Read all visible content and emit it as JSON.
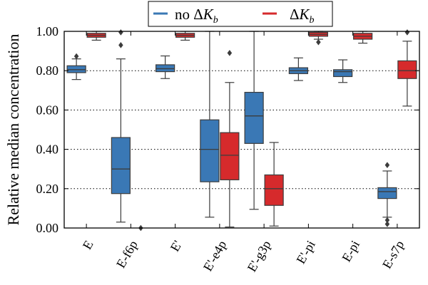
{
  "chart_data": {
    "type": "box",
    "ylabel": "Relative median concentration",
    "ylim": [
      0,
      1.0
    ],
    "yticks": [
      "0.00",
      "0.20",
      "0.40",
      "0.60",
      "0.80",
      "1.00"
    ],
    "grid": "horizontal dotted",
    "legend_position": "top-center",
    "categories": [
      "E",
      "E-f6p",
      "E'",
      "E'-e4p",
      "E'-g3p",
      "E'-pi",
      "E-pi",
      "E-s7p"
    ],
    "series": [
      {
        "name": "no ΔK_b",
        "color": "#3a78b5",
        "boxes": [
          {
            "category": "E",
            "whisker_low": 0.755,
            "q1": 0.79,
            "median": 0.805,
            "q3": 0.825,
            "whisker_high": 0.86,
            "outliers": [
              0.873
            ]
          },
          {
            "category": "E-f6p",
            "whisker_low": 0.03,
            "q1": 0.175,
            "median": 0.3,
            "q3": 0.46,
            "whisker_high": 0.86,
            "outliers": [
              0.93,
              0.995
            ]
          },
          {
            "category": "E'",
            "whisker_low": 0.76,
            "q1": 0.795,
            "median": 0.81,
            "q3": 0.83,
            "whisker_high": 0.875,
            "outliers": []
          },
          {
            "category": "E'-e4p",
            "whisker_low": 0.055,
            "q1": 0.235,
            "median": 0.4,
            "q3": 0.55,
            "whisker_high": 1.0,
            "outliers": []
          },
          {
            "category": "E'-g3p",
            "whisker_low": 0.095,
            "q1": 0.43,
            "median": 0.57,
            "q3": 0.69,
            "whisker_high": 1.0,
            "outliers": []
          },
          {
            "category": "E'-pi",
            "whisker_low": 0.75,
            "q1": 0.785,
            "median": 0.8,
            "q3": 0.815,
            "whisker_high": 0.865,
            "outliers": []
          },
          {
            "category": "E-pi",
            "whisker_low": 0.74,
            "q1": 0.77,
            "median": 0.795,
            "q3": 0.805,
            "whisker_high": 0.855,
            "outliers": []
          },
          {
            "category": "E-s7p",
            "whisker_low": 0.055,
            "q1": 0.15,
            "median": 0.185,
            "q3": 0.205,
            "whisker_high": 0.29,
            "outliers": [
              0.32,
              0.04,
              0.02
            ]
          }
        ]
      },
      {
        "name": "ΔK_b",
        "color": "#d62a2c",
        "boxes": [
          {
            "category": "E",
            "whisker_low": 0.955,
            "q1": 0.97,
            "median": 0.98,
            "q3": 0.99,
            "whisker_high": 1.0,
            "outliers": []
          },
          {
            "category": "E-f6p",
            "whisker_low": 0.0,
            "q1": 0.0,
            "median": 0.0,
            "q3": 0.0,
            "whisker_high": 0.0,
            "outliers": [
              0.0
            ]
          },
          {
            "category": "E'",
            "whisker_low": 0.955,
            "q1": 0.97,
            "median": 0.98,
            "q3": 0.99,
            "whisker_high": 1.0,
            "outliers": []
          },
          {
            "category": "E'-e4p",
            "whisker_low": 0.005,
            "q1": 0.245,
            "median": 0.37,
            "q3": 0.485,
            "whisker_high": 0.74,
            "outliers": [
              0.89
            ]
          },
          {
            "category": "E'-g3p",
            "whisker_low": 0.01,
            "q1": 0.115,
            "median": 0.2,
            "q3": 0.27,
            "whisker_high": 0.435,
            "outliers": []
          },
          {
            "category": "E'-pi",
            "whisker_low": 0.96,
            "q1": 0.975,
            "median": 0.985,
            "q3": 0.995,
            "whisker_high": 1.0,
            "outliers": [
              0.945
            ]
          },
          {
            "category": "E-pi",
            "whisker_low": 0.94,
            "q1": 0.96,
            "median": 0.975,
            "q3": 0.99,
            "whisker_high": 1.0,
            "outliers": []
          },
          {
            "category": "E-s7p",
            "whisker_low": 0.62,
            "q1": 0.76,
            "median": 0.8,
            "q3": 0.85,
            "whisker_high": 0.95,
            "outliers": [
              0.995
            ]
          }
        ]
      }
    ]
  }
}
